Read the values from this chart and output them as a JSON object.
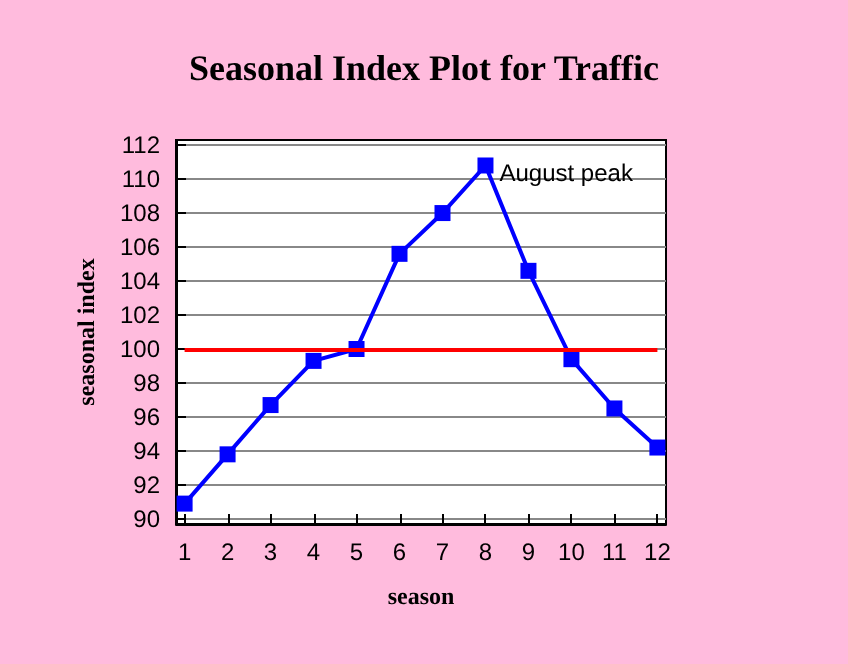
{
  "chart_data": {
    "type": "line",
    "title": "Seasonal Index Plot for Traffic",
    "xlabel": "season",
    "ylabel": "seasonal index",
    "x": [
      1,
      2,
      3,
      4,
      5,
      6,
      7,
      8,
      9,
      10,
      11,
      12
    ],
    "series": [
      {
        "color": "#0000ff",
        "values": [
          90.9,
          93.8,
          96.7,
          99.3,
          100.0,
          105.6,
          108.0,
          110.8,
          104.6,
          99.4,
          96.5,
          94.2
        ]
      }
    ],
    "xlim": [
      0.8,
      12.2
    ],
    "xticks": [
      1,
      2,
      3,
      4,
      5,
      6,
      7,
      8,
      9,
      10,
      11,
      12
    ],
    "ylim": [
      89.7,
      112.3
    ],
    "yticks": [
      90,
      92,
      94,
      96,
      98,
      100,
      102,
      104,
      106,
      108,
      110,
      112
    ],
    "ref_lines": [
      {
        "axis": "y",
        "value": 100,
        "color": "#ff0000"
      }
    ],
    "annotations": [
      {
        "text": "August peak",
        "x": 8,
        "y": 110.8
      }
    ],
    "grid": "y",
    "marker": "square",
    "line_style": "solid"
  }
}
